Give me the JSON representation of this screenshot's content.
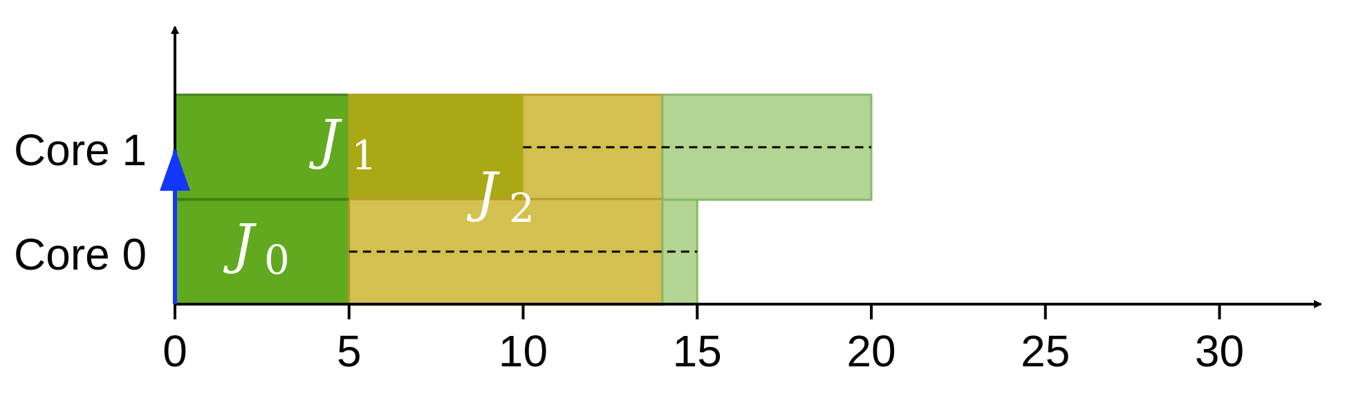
{
  "diagram": {
    "type": "core schedule timeline",
    "cores": [
      {
        "id": "core-0",
        "label": "Core 0"
      },
      {
        "id": "core-1",
        "label": "Core 1"
      }
    ],
    "x_ticks": [
      0,
      5,
      10,
      15,
      20,
      25,
      30
    ],
    "x_tick_labels": [
      "0",
      "5",
      "10",
      "15",
      "20",
      "25",
      "30"
    ],
    "jobs": [
      {
        "name": "J",
        "subscript": "0",
        "cores": [
          "core-0"
        ],
        "execution": [
          0,
          5
        ],
        "color": "#5ea91c",
        "edge": "#3f7f12"
      },
      {
        "name": "J",
        "subscript": "1",
        "cores": [
          "core-1"
        ],
        "execution": [
          0,
          10
        ],
        "color": "#5ea91c",
        "edge": "#3f7f12"
      },
      {
        "name": "J",
        "subscript": "2",
        "cores": [
          "core-0",
          "core-1"
        ],
        "execution": [
          5,
          14
        ],
        "color": "#d4bf4d",
        "edge": "#b89b26"
      },
      {
        "name": "",
        "subscript": "",
        "cores": [
          "core-0"
        ],
        "execution": [
          14,
          15
        ],
        "color": "#b1d68f",
        "edge": "#85b767"
      },
      {
        "name": "",
        "subscript": "",
        "cores": [
          "core-1"
        ],
        "execution": [
          14,
          20
        ],
        "color": "#b1d68f",
        "edge": "#85b767"
      }
    ],
    "overlap": {
      "interval": [
        5,
        10
      ],
      "color": "#a8a612"
    },
    "dashed_lines": [
      {
        "core": "core-0",
        "from": 5,
        "to": 15
      },
      {
        "core": "core-1",
        "from": 10,
        "to": 20
      }
    ],
    "release_arrow": {
      "time": 0,
      "color": "#1437ff"
    },
    "colors": {
      "axis": "#000000",
      "dash": "#000000"
    }
  }
}
